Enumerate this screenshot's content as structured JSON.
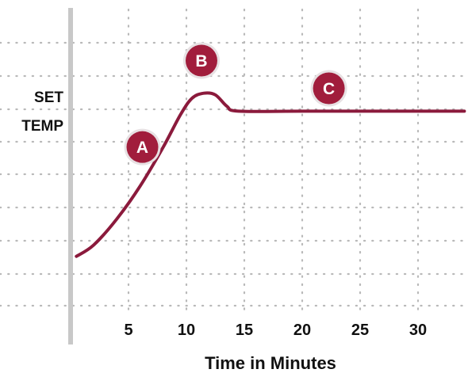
{
  "chart_data": {
    "type": "line",
    "title": "",
    "xlabel": "Time in Minutes",
    "ylabel": "",
    "y_marker_label": [
      "SET",
      "TEMP"
    ],
    "xlim": [
      0,
      34
    ],
    "x_ticks": [
      5,
      10,
      15,
      20,
      25,
      30
    ],
    "y_axis_numeric_labels": false,
    "grid": "dotted",
    "series": [
      {
        "color": "#8b1a3c",
        "points": [
          {
            "x": 0.5,
            "y": 0.05
          },
          {
            "x": 2.0,
            "y": 0.12
          },
          {
            "x": 4.0,
            "y": 0.28
          },
          {
            "x": 6.0,
            "y": 0.48
          },
          {
            "x": 8.0,
            "y": 0.72
          },
          {
            "x": 9.5,
            "y": 0.92
          },
          {
            "x": 10.5,
            "y": 1.02
          },
          {
            "x": 11.5,
            "y": 1.05
          },
          {
            "x": 12.5,
            "y": 1.04
          },
          {
            "x": 13.5,
            "y": 0.97
          },
          {
            "x": 14.5,
            "y": 0.94
          },
          {
            "x": 20.0,
            "y": 0.94
          },
          {
            "x": 34.0,
            "y": 0.94
          }
        ]
      }
    ],
    "annotations": [
      {
        "label": "A",
        "x": 6.2,
        "y": 0.72
      },
      {
        "label": "B",
        "x": 11.3,
        "y": 1.25
      },
      {
        "label": "C",
        "x": 22.3,
        "y": 1.08
      }
    ],
    "colors": {
      "curve": "#8b1a3c",
      "badge": "#a11d3c",
      "grid": "#b9b9b9",
      "axis": "#c8c8c8"
    }
  }
}
